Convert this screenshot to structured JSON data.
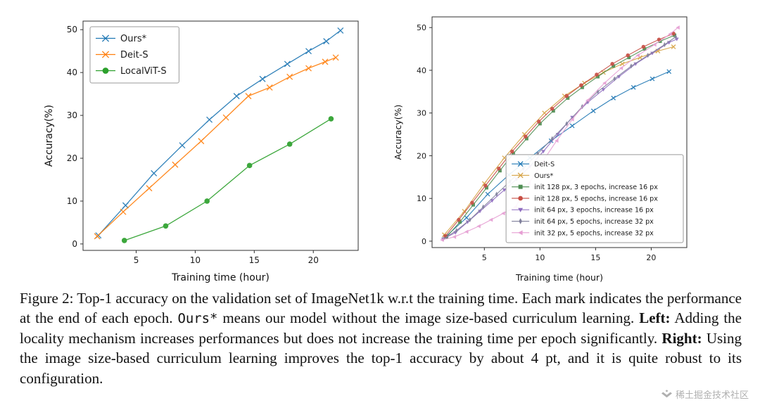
{
  "caption": {
    "segments": [
      {
        "text": "Figure 2: Top-1 accuracy on the validation set of ImageNet1k w.r.t the training time. Each mark indicates the performance at the end of each epoch. ",
        "style": "normal"
      },
      {
        "text": "Ours*",
        "style": "mono"
      },
      {
        "text": " means our model without the image size-based curriculum learning. ",
        "style": "normal"
      },
      {
        "text": "Left:",
        "style": "bold"
      },
      {
        "text": " Adding the locality mechanism increases performances but does not increase the training time per epoch significantly. ",
        "style": "normal"
      },
      {
        "text": "Right:",
        "style": "bold"
      },
      {
        "text": " Using the image size-based curriculum learning improves the top-1 accuracy by about 4 pt, and it is quite robust to its configuration.",
        "style": "normal"
      }
    ]
  },
  "watermark": {
    "text": "稀土掘金技术社区"
  },
  "chart_data": [
    {
      "type": "line",
      "title": "",
      "xlabel": "Training time (hour)",
      "ylabel": "Accuracy(%)",
      "xlim": [
        0.5,
        23.8
      ],
      "ylim": [
        -1.5,
        52
      ],
      "xticks": [
        5,
        10,
        15,
        20
      ],
      "yticks": [
        0,
        10,
        20,
        30,
        40,
        50
      ],
      "grid": false,
      "legend_position": "upper-left",
      "series": [
        {
          "name": "Ours*",
          "color": "#1f77b4",
          "marker": "x",
          "x": [
            1.8,
            4.1,
            6.5,
            8.9,
            11.2,
            13.5,
            15.7,
            17.8,
            19.6,
            21.1,
            22.3
          ],
          "y": [
            2.0,
            9.0,
            16.5,
            23.0,
            29.0,
            34.5,
            38.5,
            42.0,
            45.0,
            47.3,
            49.8
          ]
        },
        {
          "name": "Deit-S",
          "color": "#ff7f0e",
          "marker": "x",
          "x": [
            1.7,
            3.9,
            6.1,
            8.3,
            10.5,
            12.6,
            14.5,
            16.3,
            18.0,
            19.6,
            21.0,
            21.9
          ],
          "y": [
            1.8,
            7.5,
            13.0,
            18.5,
            24.0,
            29.5,
            34.5,
            36.5,
            39.0,
            41.0,
            42.5,
            43.5
          ]
        },
        {
          "name": "LocalViT-S",
          "color": "#2ca02c",
          "marker": "circle",
          "x": [
            4.0,
            7.5,
            11.0,
            14.6,
            18.0,
            21.5
          ],
          "y": [
            0.8,
            4.2,
            10.0,
            18.3,
            23.3,
            29.2
          ]
        }
      ]
    },
    {
      "type": "line",
      "title": "",
      "xlabel": "Training time (hour)",
      "ylabel": "Accuracy(%)",
      "xlim": [
        0.3,
        23.2
      ],
      "ylim": [
        -1.5,
        52.5
      ],
      "xticks": [
        5,
        10,
        15,
        20
      ],
      "yticks": [
        0,
        10,
        20,
        30,
        40,
        50
      ],
      "grid": false,
      "legend_position": "lower-right",
      "series": [
        {
          "name": "Deit-S",
          "color": "#1f77b4",
          "marker": "x",
          "x": [
            1.5,
            3.4,
            5.3,
            7.2,
            9.1,
            11.0,
            12.9,
            14.8,
            16.6,
            18.4,
            20.1,
            21.6
          ],
          "y": [
            1.0,
            5.5,
            11.0,
            15.5,
            19.5,
            23.5,
            27.0,
            30.5,
            33.5,
            36.0,
            38.0,
            39.7
          ]
        },
        {
          "name": "Ours*",
          "color": "#d6a243",
          "marker": "x",
          "x": [
            1.4,
            3.2,
            5.0,
            6.8,
            8.6,
            10.4,
            12.2,
            14.0,
            15.7,
            17.4,
            19.0,
            20.6,
            22.0
          ],
          "y": [
            1.5,
            7.0,
            13.5,
            19.5,
            25.0,
            30.0,
            34.0,
            37.0,
            39.5,
            41.5,
            43.0,
            44.5,
            45.5
          ]
        },
        {
          "name": "init 128 px, 3 epochs, increase 16 px",
          "color": "#4e8d52",
          "marker": "square",
          "x": [
            1.6,
            2.8,
            4.0,
            5.2,
            6.4,
            7.6,
            8.8,
            10.0,
            11.2,
            12.5,
            13.8,
            15.2,
            16.6,
            18.0,
            19.4,
            20.8,
            22.1
          ],
          "y": [
            1.0,
            4.5,
            8.5,
            12.5,
            16.5,
            20.5,
            24.0,
            27.5,
            30.5,
            33.5,
            36.0,
            38.5,
            41.0,
            43.0,
            45.0,
            46.8,
            48.2
          ]
        },
        {
          "name": "init 128 px, 5 epochs, increase 16 px",
          "color": "#c74e44",
          "marker": "circle",
          "x": [
            1.5,
            2.7,
            3.9,
            5.1,
            6.3,
            7.5,
            8.7,
            9.9,
            11.1,
            12.4,
            13.7,
            15.1,
            16.5,
            17.9,
            19.3,
            20.7,
            22.0
          ],
          "y": [
            1.2,
            5.0,
            9.0,
            13.0,
            17.0,
            21.0,
            24.5,
            28.0,
            31.0,
            34.0,
            36.5,
            39.0,
            41.5,
            43.5,
            45.5,
            47.2,
            48.6
          ]
        },
        {
          "name": "init 64 px, 3 epochs, increase 16 px",
          "color": "#8e6cbf",
          "marker": "triangle-down",
          "x": [
            1.3,
            2.4,
            3.5,
            4.6,
            5.7,
            6.8,
            7.9,
            9.1,
            10.3,
            11.6,
            12.9,
            14.3,
            15.7,
            17.1,
            18.6,
            20.1,
            21.6,
            22.3
          ],
          "y": [
            0.5,
            2.0,
            4.5,
            7.0,
            9.5,
            12.0,
            14.5,
            17.5,
            21.0,
            25.0,
            29.0,
            32.5,
            35.5,
            38.5,
            41.5,
            44.0,
            46.5,
            47.3
          ]
        },
        {
          "name": "init 64 px, 5 epochs, increase 32 px",
          "color": "#80809c",
          "marker": "diamond-thin",
          "x": [
            1.3,
            2.5,
            3.7,
            4.9,
            6.1,
            7.3,
            8.5,
            9.8,
            11.1,
            12.4,
            13.8,
            15.2,
            16.7,
            18.2,
            19.7,
            21.2,
            22.2
          ],
          "y": [
            0.5,
            2.5,
            5.0,
            8.0,
            11.0,
            14.0,
            17.0,
            20.5,
            24.0,
            27.5,
            31.5,
            35.0,
            38.0,
            41.0,
            43.5,
            46.0,
            47.8
          ]
        },
        {
          "name": "init 32 px, 5 epochs, increase 32 px",
          "color": "#e69ed3",
          "marker": "triangle-left",
          "x": [
            1.2,
            2.3,
            3.4,
            4.5,
            5.6,
            6.7,
            7.8,
            9.0,
            10.2,
            11.5,
            12.9,
            14.3,
            15.8,
            17.3,
            18.8,
            20.3,
            21.7,
            22.4
          ],
          "y": [
            0.3,
            1.0,
            2.2,
            3.5,
            5.0,
            6.5,
            8.0,
            13.5,
            18.5,
            23.5,
            28.5,
            33.0,
            37.0,
            40.5,
            43.5,
            46.0,
            48.5,
            50.0
          ]
        }
      ]
    }
  ]
}
